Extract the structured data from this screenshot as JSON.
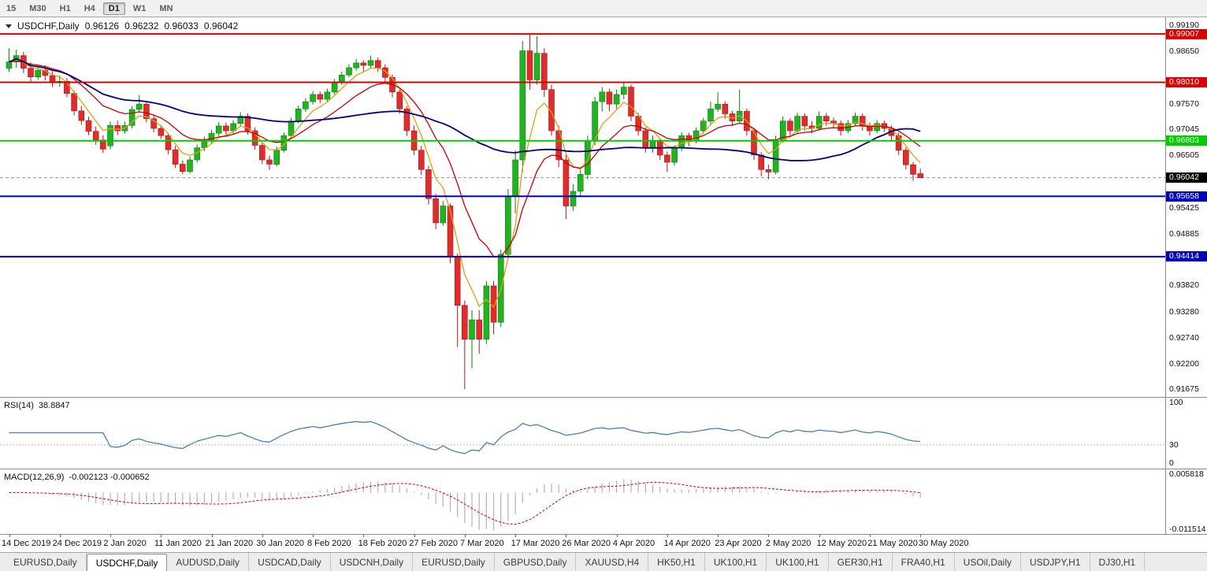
{
  "toolbar": {
    "timeframes": [
      {
        "label": "15",
        "active": false
      },
      {
        "label": "M30",
        "active": false
      },
      {
        "label": "H1",
        "active": false
      },
      {
        "label": "H4",
        "active": false
      },
      {
        "label": "D1",
        "active": true
      },
      {
        "label": "W1",
        "active": false
      },
      {
        "label": "MN",
        "active": false
      }
    ]
  },
  "chart": {
    "symbol_title": "USDCHF,Daily",
    "ohlc": {
      "open": "0.96126",
      "high": "0.96232",
      "low": "0.96033",
      "close": "0.96042"
    }
  },
  "indicators": {
    "rsi": {
      "name": "RSI(14)",
      "value": "38.8847",
      "period": 14,
      "level": 30,
      "color": "#4a7fb5",
      "axis_labels": [
        {
          "value": 100,
          "label": "100"
        },
        {
          "value": 30,
          "label": "30"
        },
        {
          "value": 0,
          "label": "0"
        }
      ]
    },
    "macd": {
      "name": "MACD(12,26,9)",
      "value": "-0.002123 -0.000652",
      "fast": 12,
      "slow": 26,
      "signal": 9,
      "histogram_color": "#b2b2b2",
      "signal_color": "#d40000",
      "axis_labels": [
        {
          "value": 0.005818,
          "label": "0.005818"
        },
        {
          "value": -0.011514,
          "label": "-0.011514"
        }
      ]
    }
  },
  "tabs": [
    {
      "label": "EURUSD,Daily",
      "active": false
    },
    {
      "label": "USDCHF,Daily",
      "active": true
    },
    {
      "label": "AUDUSD,Daily",
      "active": false
    },
    {
      "label": "USDCAD,Daily",
      "active": false
    },
    {
      "label": "USDCNH,Daily",
      "active": false
    },
    {
      "label": "EURUSD,Daily",
      "active": false
    },
    {
      "label": "GBPUSD,Daily",
      "active": false
    },
    {
      "label": "XAUUSD,H4",
      "active": false
    },
    {
      "label": "HK50,H1",
      "active": false
    },
    {
      "label": "UK100,H1",
      "active": false
    },
    {
      "label": "UK100,H1",
      "active": false
    },
    {
      "label": "GER30,H1",
      "active": false
    },
    {
      "label": "FRA40,H1",
      "active": false
    },
    {
      "label": "USOil,Daily",
      "active": false
    },
    {
      "label": "USDJPY,H1",
      "active": false
    },
    {
      "label": "DJ30,H1",
      "active": false
    }
  ],
  "chart_data": {
    "type": "candlestick",
    "symbol": "USDCHF",
    "timeframe": "Daily",
    "grid": false,
    "y_range": {
      "top": 0.9935,
      "bottom": 0.9152
    },
    "y_ticks": [
      "0.99190",
      "0.98650",
      "0.97570",
      "0.97045",
      "0.96505",
      "0.95425",
      "0.94885",
      "0.93820",
      "0.93280",
      "0.92740",
      "0.92200",
      "0.91675"
    ],
    "time_labels": [
      "14 Dec 2019",
      "24 Dec 2019",
      "2 Jan 2020",
      "11 Jan 2020",
      "21 Jan 2020",
      "30 Jan 2020",
      "8 Feb 2020",
      "18 Feb 2020",
      "27 Feb 2020",
      "7 Mar 2020",
      "17 Mar 2020",
      "26 Mar 2020",
      "4 Apr 2020",
      "14 Apr 2020",
      "23 Apr 2020",
      "2 May 2020",
      "12 May 2020",
      "21 May 2020",
      "30 May 2020"
    ],
    "bars_per_time_label": 7,
    "hlines": [
      {
        "price": 0.99007,
        "label": "0.99007",
        "color": "#dc0000"
      },
      {
        "price": 0.9801,
        "label": "0.98010",
        "color": "#dc0000"
      },
      {
        "price": 0.96803,
        "label": "0.96803",
        "color": "#00ce00"
      },
      {
        "price": 0.95658,
        "label": "0.95658",
        "color": "#0000bb"
      },
      {
        "price": 0.94414,
        "label": "0.94414",
        "color": "#0000bb"
      }
    ],
    "current": {
      "price": 0.96042,
      "label": "0.96042"
    },
    "colors": {
      "up": "#22b322",
      "down": "#e02c2c",
      "up_border": "#0c7c0c",
      "down_border": "#a51c1c"
    },
    "moving_averages": [
      {
        "period": 5,
        "method": "ema",
        "color": "#dfa012",
        "width": 1.3
      },
      {
        "period": 13,
        "method": "ema",
        "color": "#c80000",
        "width": 1.3
      },
      {
        "period": 55,
        "method": "sma",
        "color": "#000080",
        "width": 1.8
      }
    ],
    "candles": [
      [
        0.983,
        0.9871,
        0.9822,
        0.9843
      ],
      [
        0.9843,
        0.9868,
        0.9831,
        0.9856
      ],
      [
        0.9856,
        0.9864,
        0.982,
        0.983
      ],
      [
        0.983,
        0.9842,
        0.9801,
        0.9812
      ],
      [
        0.9812,
        0.9834,
        0.9806,
        0.9826
      ],
      [
        0.9826,
        0.9836,
        0.9805,
        0.9815
      ],
      [
        0.9815,
        0.9824,
        0.9791,
        0.98
      ],
      [
        0.98,
        0.9815,
        0.9792,
        0.9803
      ],
      [
        0.9803,
        0.981,
        0.977,
        0.9778
      ],
      [
        0.9778,
        0.9784,
        0.9733,
        0.9742
      ],
      [
        0.9742,
        0.9752,
        0.9713,
        0.9722
      ],
      [
        0.9722,
        0.973,
        0.9692,
        0.97
      ],
      [
        0.97,
        0.971,
        0.9672,
        0.9682
      ],
      [
        0.9682,
        0.9692,
        0.9655,
        0.9663
      ],
      [
        0.967,
        0.972,
        0.9663,
        0.9712
      ],
      [
        0.9712,
        0.9722,
        0.9692,
        0.9701
      ],
      [
        0.9701,
        0.972,
        0.9695,
        0.9712
      ],
      [
        0.9712,
        0.9752,
        0.9706,
        0.9745
      ],
      [
        0.9745,
        0.9775,
        0.9738,
        0.9756
      ],
      [
        0.9756,
        0.9762,
        0.9718,
        0.9726
      ],
      [
        0.9726,
        0.9734,
        0.9698,
        0.9706
      ],
      [
        0.9706,
        0.9713,
        0.9684,
        0.9691
      ],
      [
        0.9691,
        0.9697,
        0.9653,
        0.9662
      ],
      [
        0.9662,
        0.967,
        0.9624,
        0.9632
      ],
      [
        0.9632,
        0.964,
        0.9612,
        0.9617
      ],
      [
        0.9617,
        0.9648,
        0.9613,
        0.9641
      ],
      [
        0.9641,
        0.9673,
        0.9636,
        0.9666
      ],
      [
        0.9666,
        0.9689,
        0.9659,
        0.9681
      ],
      [
        0.9681,
        0.9703,
        0.9674,
        0.9696
      ],
      [
        0.9696,
        0.9719,
        0.969,
        0.9711
      ],
      [
        0.9711,
        0.9718,
        0.9692,
        0.9701
      ],
      [
        0.9701,
        0.9723,
        0.9695,
        0.9716
      ],
      [
        0.9716,
        0.9739,
        0.971,
        0.9731
      ],
      [
        0.9731,
        0.9737,
        0.9693,
        0.9701
      ],
      [
        0.9701,
        0.9708,
        0.9662,
        0.9671
      ],
      [
        0.9671,
        0.9677,
        0.9632,
        0.9641
      ],
      [
        0.9641,
        0.965,
        0.962,
        0.9632
      ],
      [
        0.9632,
        0.9668,
        0.9628,
        0.9661
      ],
      [
        0.9661,
        0.9698,
        0.9656,
        0.9691
      ],
      [
        0.9691,
        0.9728,
        0.9686,
        0.9721
      ],
      [
        0.9721,
        0.9753,
        0.9716,
        0.9746
      ],
      [
        0.9746,
        0.9768,
        0.974,
        0.9761
      ],
      [
        0.9761,
        0.9783,
        0.9755,
        0.9776
      ],
      [
        0.9776,
        0.9782,
        0.9758,
        0.9766
      ],
      [
        0.9766,
        0.9788,
        0.9761,
        0.9781
      ],
      [
        0.9781,
        0.9808,
        0.9776,
        0.9801
      ],
      [
        0.9801,
        0.9823,
        0.9796,
        0.9816
      ],
      [
        0.9816,
        0.9838,
        0.9811,
        0.9831
      ],
      [
        0.9831,
        0.9849,
        0.9825,
        0.9841
      ],
      [
        0.9841,
        0.9847,
        0.9822,
        0.9836
      ],
      [
        0.9836,
        0.9856,
        0.983,
        0.9846
      ],
      [
        0.9846,
        0.9852,
        0.9823,
        0.9831
      ],
      [
        0.9831,
        0.9838,
        0.9801,
        0.9811
      ],
      [
        0.9811,
        0.9817,
        0.977,
        0.9781
      ],
      [
        0.9781,
        0.9788,
        0.9736,
        0.9746
      ],
      [
        0.9746,
        0.9752,
        0.969,
        0.9701
      ],
      [
        0.9701,
        0.9712,
        0.9651,
        0.9661
      ],
      [
        0.9661,
        0.967,
        0.961,
        0.9621
      ],
      [
        0.9621,
        0.9629,
        0.9549,
        0.9561
      ],
      [
        0.9561,
        0.9571,
        0.9498,
        0.9511
      ],
      [
        0.9511,
        0.9556,
        0.9505,
        0.9546
      ],
      [
        0.9546,
        0.9551,
        0.9428,
        0.9441
      ],
      [
        0.9441,
        0.9448,
        0.9255,
        0.9341
      ],
      [
        0.9341,
        0.9351,
        0.9168,
        0.9271
      ],
      [
        0.9271,
        0.9331,
        0.9211,
        0.9311
      ],
      [
        0.9311,
        0.9331,
        0.9241,
        0.9271
      ],
      [
        0.9271,
        0.9391,
        0.9261,
        0.9381
      ],
      [
        0.9381,
        0.9391,
        0.9281,
        0.9306
      ],
      [
        0.9306,
        0.9456,
        0.9296,
        0.9446
      ],
      [
        0.9446,
        0.9581,
        0.9436,
        0.9566
      ],
      [
        0.9566,
        0.9661,
        0.9531,
        0.9641
      ],
      [
        0.9641,
        0.9886,
        0.9616,
        0.9866
      ],
      [
        0.9866,
        0.9902,
        0.9786,
        0.9806
      ],
      [
        0.9806,
        0.9896,
        0.9796,
        0.9861
      ],
      [
        0.9861,
        0.9871,
        0.9771,
        0.9786
      ],
      [
        0.9786,
        0.9796,
        0.9691,
        0.9701
      ],
      [
        0.9701,
        0.9711,
        0.9626,
        0.9641
      ],
      [
        0.9641,
        0.9651,
        0.9519,
        0.9546
      ],
      [
        0.9546,
        0.9591,
        0.9536,
        0.9576
      ],
      [
        0.9576,
        0.9621,
        0.9566,
        0.9611
      ],
      [
        0.9611,
        0.9691,
        0.9601,
        0.9681
      ],
      [
        0.9681,
        0.9771,
        0.9671,
        0.9761
      ],
      [
        0.9761,
        0.9791,
        0.9741,
        0.9781
      ],
      [
        0.9781,
        0.9788,
        0.9741,
        0.9756
      ],
      [
        0.9756,
        0.9786,
        0.9746,
        0.9776
      ],
      [
        0.9776,
        0.9801,
        0.9766,
        0.9791
      ],
      [
        0.9791,
        0.9796,
        0.9721,
        0.9731
      ],
      [
        0.9731,
        0.9738,
        0.9691,
        0.9701
      ],
      [
        0.9701,
        0.9708,
        0.9656,
        0.9666
      ],
      [
        0.9666,
        0.9691,
        0.9656,
        0.9681
      ],
      [
        0.9681,
        0.9686,
        0.9641,
        0.9651
      ],
      [
        0.9651,
        0.9658,
        0.9616,
        0.9636
      ],
      [
        0.9636,
        0.9671,
        0.9629,
        0.9666
      ],
      [
        0.9666,
        0.9698,
        0.9659,
        0.9691
      ],
      [
        0.9691,
        0.9697,
        0.9669,
        0.9681
      ],
      [
        0.9681,
        0.9708,
        0.9675,
        0.9701
      ],
      [
        0.9701,
        0.9728,
        0.9695,
        0.9721
      ],
      [
        0.9721,
        0.9761,
        0.9715,
        0.9746
      ],
      [
        0.9746,
        0.9781,
        0.974,
        0.9756
      ],
      [
        0.9756,
        0.9762,
        0.9726,
        0.9736
      ],
      [
        0.9736,
        0.9742,
        0.9711,
        0.9721
      ],
      [
        0.9721,
        0.9786,
        0.9715,
        0.9741
      ],
      [
        0.9741,
        0.9747,
        0.9691,
        0.9701
      ],
      [
        0.9701,
        0.9707,
        0.9641,
        0.9651
      ],
      [
        0.9651,
        0.9657,
        0.9607,
        0.9621
      ],
      [
        0.9621,
        0.9631,
        0.9601,
        0.9616
      ],
      [
        0.9616,
        0.9691,
        0.9611,
        0.9681
      ],
      [
        0.9681,
        0.9731,
        0.9676,
        0.9721
      ],
      [
        0.9721,
        0.9727,
        0.9691,
        0.9701
      ],
      [
        0.9701,
        0.9738,
        0.9695,
        0.9731
      ],
      [
        0.9731,
        0.9737,
        0.9701,
        0.9711
      ],
      [
        0.9711,
        0.9721,
        0.9696,
        0.9706
      ],
      [
        0.9706,
        0.9741,
        0.9701,
        0.9731
      ],
      [
        0.9731,
        0.9738,
        0.9711,
        0.9721
      ],
      [
        0.9721,
        0.9728,
        0.9706,
        0.9716
      ],
      [
        0.9716,
        0.9722,
        0.9691,
        0.9701
      ],
      [
        0.9701,
        0.9723,
        0.9696,
        0.9716
      ],
      [
        0.9716,
        0.9738,
        0.9711,
        0.9731
      ],
      [
        0.9731,
        0.9737,
        0.9701,
        0.9711
      ],
      [
        0.9711,
        0.9718,
        0.9691,
        0.9701
      ],
      [
        0.9701,
        0.9723,
        0.9696,
        0.9716
      ],
      [
        0.9716,
        0.9722,
        0.9698,
        0.9706
      ],
      [
        0.9706,
        0.9712,
        0.9681,
        0.9691
      ],
      [
        0.9691,
        0.9697,
        0.9651,
        0.9661
      ],
      [
        0.9661,
        0.9667,
        0.9621,
        0.9631
      ],
      [
        0.9631,
        0.9637,
        0.9598,
        0.9611
      ],
      [
        0.96126,
        0.96232,
        0.96033,
        0.96042
      ]
    ]
  }
}
